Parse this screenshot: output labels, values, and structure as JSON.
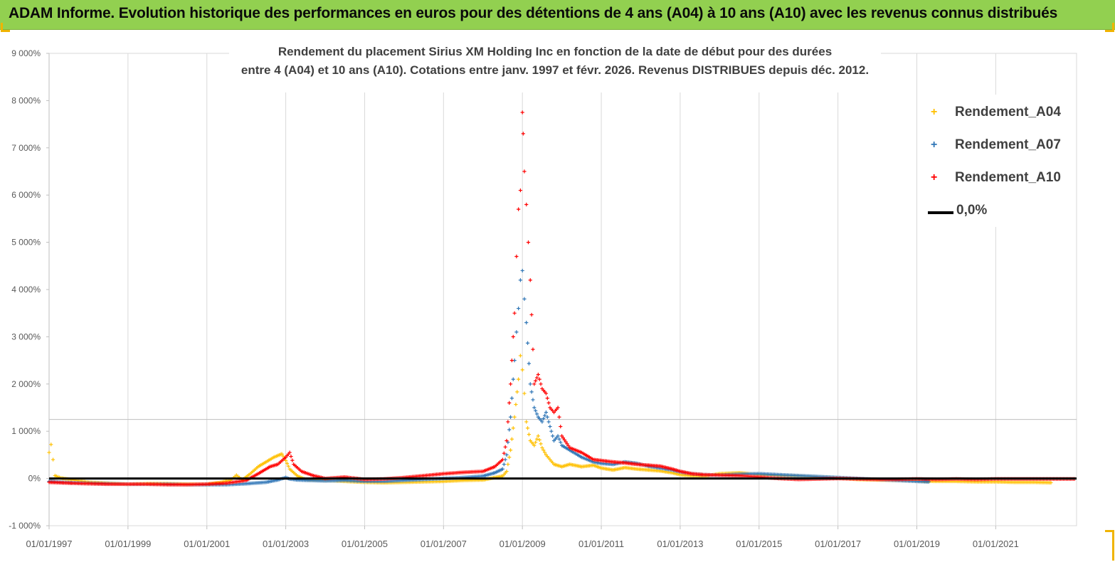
{
  "header": {
    "title": "ADAM Informe. Evolution historique des performances en euros pour des détentions de 4 ans (A04) à 10 ans (A10) avec les revenus connus distribués"
  },
  "chart_data": {
    "type": "scatter",
    "title_line1": "Rendement du placement Sirius XM Holding Inc en fonction de la date de début pour des durées",
    "title_line2": "entre 4 (A04) et 10 ans (A10).  Cotations entre janv. 1997 et févr. 2026. Revenus DISTRIBUES depuis déc. 2012.",
    "xlabel": "",
    "ylabel": "",
    "x_ticks": [
      "01/01/1997",
      "01/01/1999",
      "01/01/2001",
      "01/01/2003",
      "01/01/2005",
      "01/01/2007",
      "01/01/2009",
      "01/01/2011",
      "01/01/2013",
      "01/01/2015",
      "01/01/2017",
      "01/01/2019",
      "01/01/2021"
    ],
    "y_ticks": [
      "-1 000%",
      "0%",
      "1 000%",
      "2 000%",
      "3 000%",
      "4 000%",
      "5 000%",
      "6 000%",
      "7 000%",
      "8 000%",
      "9 000%"
    ],
    "xlim": [
      1997.0,
      2023.05
    ],
    "ylim": [
      -1000,
      9000
    ],
    "grid": "vertical",
    "legend_position": "right",
    "colors": {
      "A04": "#FFC000",
      "A07": "#2E75B6",
      "A10": "#FF0000",
      "zero": "#000000"
    },
    "legend": [
      "Rendement_A04",
      "Rendement_A07",
      "Rendement_A10",
      "0,0%"
    ],
    "series": [
      {
        "name": "Rendement_A04",
        "x": [
          1997.0,
          1997.05,
          1997.1,
          1997.15,
          1997.3,
          1997.6,
          1998.0,
          1998.5,
          1999.0,
          1999.5,
          2000.0,
          2000.5,
          2001.0,
          2001.3,
          2001.6,
          2001.75,
          2001.9,
          2002.1,
          2002.3,
          2002.5,
          2002.7,
          2002.9,
          2003.0,
          2003.1,
          2003.3,
          2003.5,
          2004.0,
          2004.5,
          2005.0,
          2005.5,
          2006.0,
          2006.5,
          2007.0,
          2007.5,
          2008.0,
          2008.3,
          2008.5,
          2008.6,
          2008.7,
          2008.8,
          2008.9,
          2008.95,
          2009.0,
          2009.05,
          2009.1,
          2009.2,
          2009.3,
          2009.4,
          2009.5,
          2009.6,
          2009.8,
          2010.0,
          2010.2,
          2010.5,
          2010.8,
          2011.0,
          2011.3,
          2011.6,
          2011.9,
          2012.2,
          2012.5,
          2012.8,
          2013.0,
          2013.3,
          2013.6,
          2014.0,
          2014.5,
          2015.0,
          2015.5,
          2016.0,
          2016.5,
          2017.0,
          2017.5,
          2018.0,
          2018.5,
          2019.0,
          2019.5,
          2020.0,
          2020.5,
          2021.0,
          2021.5,
          2022.0,
          2022.4
        ],
        "values": [
          550,
          720,
          400,
          60,
          10,
          -30,
          -80,
          -100,
          -120,
          -110,
          -110,
          -120,
          -120,
          -90,
          -40,
          70,
          -30,
          100,
          250,
          350,
          450,
          520,
          380,
          200,
          50,
          -20,
          -40,
          -60,
          -80,
          -90,
          -80,
          -70,
          -60,
          -40,
          -30,
          20,
          50,
          150,
          600,
          1300,
          2100,
          2600,
          2300,
          1800,
          1200,
          800,
          700,
          900,
          650,
          500,
          300,
          250,
          300,
          250,
          280,
          220,
          180,
          230,
          200,
          180,
          160,
          120,
          80,
          60,
          50,
          100,
          120,
          80,
          60,
          50,
          30,
          10,
          -20,
          -30,
          -40,
          -50,
          -60,
          -60,
          -70,
          -70,
          -80,
          -80,
          -90
        ]
      },
      {
        "name": "Rendement_A07",
        "x": [
          1997.0,
          1997.3,
          1997.6,
          1998.0,
          1998.5,
          1999.0,
          1999.5,
          2000.0,
          2000.5,
          2001.0,
          2001.5,
          2002.0,
          2002.5,
          2002.8,
          2003.0,
          2003.1,
          2003.3,
          2003.6,
          2004.0,
          2004.5,
          2005.0,
          2005.5,
          2006.0,
          2006.5,
          2007.0,
          2007.5,
          2008.0,
          2008.3,
          2008.5,
          2008.6,
          2008.7,
          2008.8,
          2008.85,
          2008.9,
          2008.95,
          2009.0,
          2009.05,
          2009.1,
          2009.2,
          2009.3,
          2009.4,
          2009.5,
          2009.6,
          2009.7,
          2009.8,
          2009.9,
          2010.0,
          2010.2,
          2010.5,
          2010.8,
          2011.0,
          2011.3,
          2011.6,
          2011.9,
          2012.2,
          2012.5,
          2012.8,
          2013.0,
          2013.3,
          2013.6,
          2014.0,
          2014.5,
          2015.0,
          2015.5,
          2016.0,
          2016.5,
          2017.0,
          2017.5,
          2018.0,
          2018.5,
          2019.0,
          2019.3
        ],
        "values": [
          -60,
          -80,
          -90,
          -100,
          -110,
          -120,
          -120,
          -120,
          -130,
          -130,
          -130,
          -110,
          -80,
          -30,
          20,
          -10,
          -30,
          -40,
          -50,
          -40,
          -60,
          -60,
          -40,
          -20,
          0,
          20,
          50,
          120,
          200,
          500,
          1300,
          2500,
          3100,
          3600,
          4200,
          4400,
          3800,
          3300,
          2000,
          1500,
          1300,
          1200,
          1400,
          1100,
          800,
          900,
          700,
          600,
          450,
          350,
          320,
          300,
          350,
          320,
          260,
          220,
          180,
          140,
          100,
          80,
          70,
          90,
          100,
          80,
          60,
          40,
          20,
          0,
          -20,
          -40,
          -60,
          -70
        ]
      },
      {
        "name": "Rendement_A10",
        "x": [
          1997.0,
          1997.3,
          1997.6,
          1998.0,
          1998.5,
          1999.0,
          1999.5,
          2000.0,
          2000.5,
          2001.0,
          2001.5,
          2002.0,
          2002.3,
          2002.6,
          2002.8,
          2003.0,
          2003.1,
          2003.2,
          2003.4,
          2003.7,
          2004.0,
          2004.5,
          2005.0,
          2005.5,
          2006.0,
          2006.5,
          2007.0,
          2007.5,
          2008.0,
          2008.3,
          2008.5,
          2008.6,
          2008.7,
          2008.8,
          2008.85,
          2008.9,
          2008.95,
          2009.0,
          2009.02,
          2009.05,
          2009.1,
          2009.15,
          2009.2,
          2009.3,
          2009.4,
          2009.5,
          2009.6,
          2009.7,
          2009.8,
          2009.9,
          2010.0,
          2010.2,
          2010.5,
          2010.8,
          2011.0,
          2011.3,
          2011.6,
          2011.9,
          2012.2,
          2012.5,
          2012.8,
          2013.0,
          2013.3,
          2013.6,
          2014.0,
          2014.5,
          2015.0,
          2015.5,
          2016.0,
          2016.5,
          2017.0,
          2017.5,
          2018.0,
          2018.5,
          2019.0,
          2019.5,
          2020.0,
          2020.5,
          2021.0,
          2021.5,
          2022.0,
          2022.5,
          2023.0
        ],
        "values": [
          -80,
          -90,
          -100,
          -110,
          -120,
          -120,
          -120,
          -130,
          -130,
          -120,
          -100,
          -40,
          100,
          250,
          300,
          450,
          550,
          300,
          150,
          60,
          0,
          30,
          -20,
          -10,
          20,
          60,
          100,
          130,
          150,
          250,
          400,
          800,
          2000,
          3500,
          4700,
          5700,
          6100,
          7750,
          7300,
          6500,
          5800,
          5000,
          4200,
          2000,
          2200,
          1900,
          1800,
          1500,
          1400,
          1500,
          900,
          650,
          550,
          400,
          380,
          350,
          330,
          300,
          280,
          260,
          200,
          150,
          100,
          80,
          70,
          60,
          30,
          0,
          -20,
          -10,
          0,
          -10,
          -20,
          -20,
          -10,
          -20,
          -10,
          -20,
          -10,
          -10,
          -10,
          -10,
          -10
        ]
      },
      {
        "name": "0,0%",
        "x": [
          1997.0,
          2023.05
        ],
        "values": [
          0,
          0
        ]
      }
    ]
  }
}
